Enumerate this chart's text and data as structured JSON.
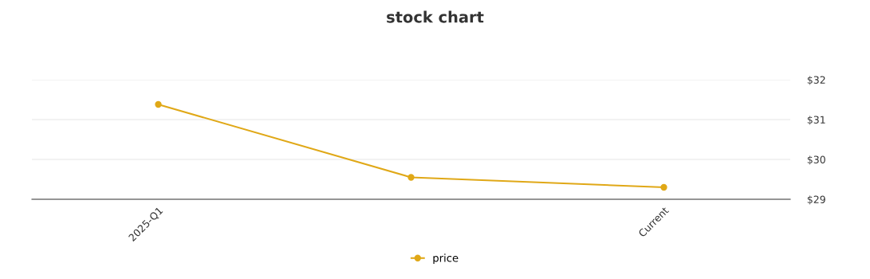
{
  "chart_data": {
    "type": "line",
    "title": "stock chart",
    "categories": [
      "2025-Q1",
      null,
      "Current"
    ],
    "series": [
      {
        "name": "price",
        "color": "#e0a817",
        "values": [
          31.38,
          29.55,
          29.3
        ]
      }
    ],
    "ylim": [
      29,
      32
    ],
    "yticks": [
      {
        "value": 29,
        "label": "$29"
      },
      {
        "value": 30,
        "label": "$30"
      },
      {
        "value": 31,
        "label": "$31"
      },
      {
        "value": 32,
        "label": "$32"
      }
    ],
    "grid": "y",
    "legend": "bottom",
    "marker": "circle",
    "line_style": "solid"
  }
}
